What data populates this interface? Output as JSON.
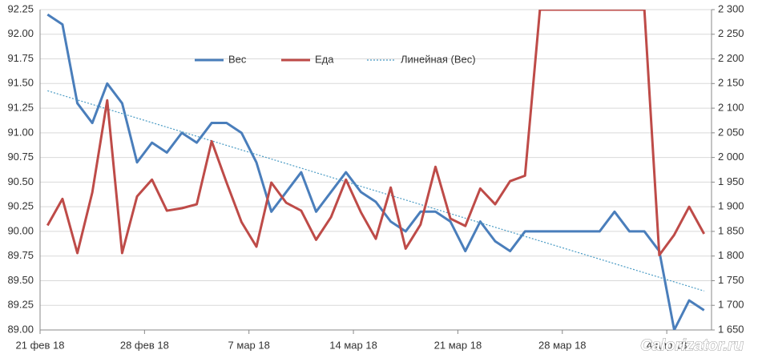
{
  "chart_data": {
    "type": "line",
    "categories": [
      "21 фев 18",
      null,
      null,
      null,
      null,
      null,
      null,
      "28 фев 18",
      null,
      null,
      null,
      null,
      null,
      null,
      "7 мар 18",
      null,
      null,
      null,
      null,
      null,
      null,
      "14 мар 18",
      null,
      null,
      null,
      null,
      null,
      null,
      "21 мар 18",
      null,
      null,
      null,
      null,
      null,
      null,
      "28 мар 18",
      null,
      null,
      null,
      null,
      null,
      null,
      "4 апр 18",
      null,
      null
    ],
    "series": [
      {
        "name": "Вес",
        "color": "#4a7ebb",
        "axis": "y",
        "values": [
          92.2,
          92.1,
          91.3,
          91.1,
          91.5,
          91.3,
          90.7,
          90.9,
          90.8,
          91.0,
          90.9,
          91.1,
          91.1,
          91.0,
          90.7,
          90.2,
          90.4,
          90.6,
          90.2,
          90.4,
          90.6,
          90.4,
          90.3,
          90.1,
          90.0,
          90.2,
          90.2,
          90.1,
          89.8,
          90.1,
          89.9,
          89.8,
          90.0,
          90.0,
          90.0,
          90.0,
          90.0,
          90.0,
          90.2,
          90.0,
          90.0,
          89.8,
          89.0,
          89.3,
          89.2
        ],
        "trendline": {
          "name": "Линейная (Вес)",
          "color": "#4a9bc4"
        }
      },
      {
        "name": "Еда",
        "color": "#be4b48",
        "axis": "y2",
        "values": [
          1862,
          1916,
          1806,
          1929,
          2116,
          1806,
          1921,
          1955,
          1892,
          1897,
          1905,
          2033,
          1949,
          1869,
          1819,
          1949,
          1908,
          1892,
          1833,
          1879,
          1955,
          1889,
          1835,
          1939,
          1815,
          1864,
          1981,
          1876,
          1861,
          1937,
          1905,
          1952,
          1963,
          2300,
          2300,
          2300,
          2300,
          2300,
          2300,
          2300,
          2300,
          1802,
          1843,
          1900,
          1845
        ]
      }
    ],
    "ylim": [
      89,
      92.25
    ],
    "yticks": [
      {
        "value": 89,
        "label": "89.00"
      },
      {
        "value": 89.25,
        "label": "89.25"
      },
      {
        "value": 89.5,
        "label": "89.50"
      },
      {
        "value": 89.75,
        "label": "89.75"
      },
      {
        "value": 90,
        "label": "90.00"
      },
      {
        "value": 90.25,
        "label": "90.25"
      },
      {
        "value": 90.5,
        "label": "90.50"
      },
      {
        "value": 90.75,
        "label": "90.75"
      },
      {
        "value": 91,
        "label": "91.00"
      },
      {
        "value": 91.25,
        "label": "91.25"
      },
      {
        "value": 91.5,
        "label": "91.50"
      },
      {
        "value": 91.75,
        "label": "91.75"
      },
      {
        "value": 92,
        "label": "92.00"
      },
      {
        "value": 92.25,
        "label": "92.25"
      }
    ],
    "y2lim": [
      1650,
      2300
    ],
    "y2ticks": [
      {
        "value": 1650,
        "label": "1 650"
      },
      {
        "value": 1700,
        "label": "1 700"
      },
      {
        "value": 1750,
        "label": "1 750"
      },
      {
        "value": 1800,
        "label": "1 800"
      },
      {
        "value": 1850,
        "label": "1 850"
      },
      {
        "value": 1900,
        "label": "1 900"
      },
      {
        "value": 1950,
        "label": "1 950"
      },
      {
        "value": 2000,
        "label": "2 000"
      },
      {
        "value": 2050,
        "label": "2 050"
      },
      {
        "value": 2100,
        "label": "2 100"
      },
      {
        "value": 2150,
        "label": "2 150"
      },
      {
        "value": 2200,
        "label": "2 200"
      },
      {
        "value": 2250,
        "label": "2 250"
      },
      {
        "value": 2300,
        "label": "2 300"
      }
    ],
    "grid": true,
    "legend": "top",
    "watermark": "Calorizator.ru"
  }
}
